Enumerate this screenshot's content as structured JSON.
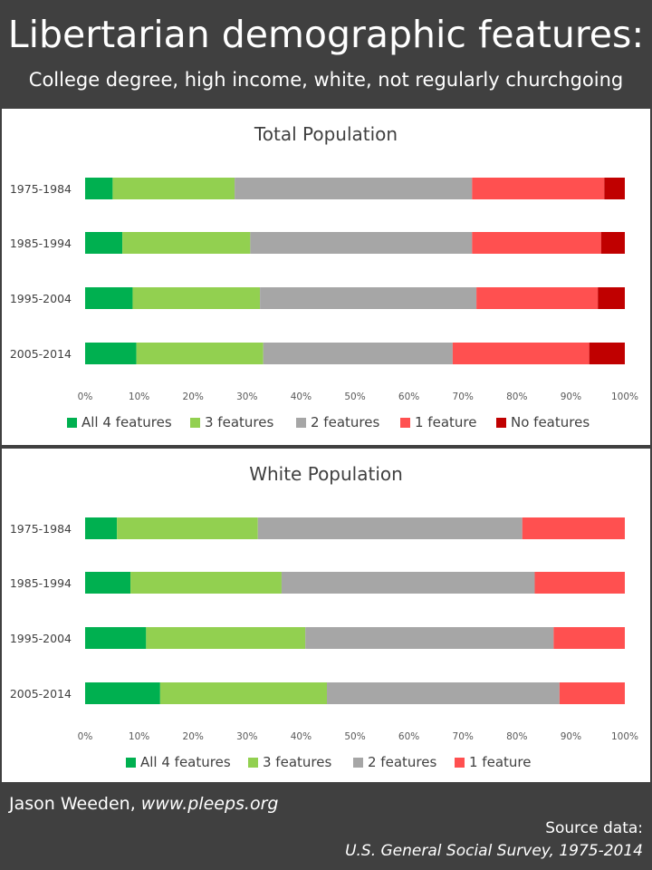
{
  "header": {
    "title": "Libertarian demographic features:",
    "subtitle": "College degree, high income, white, not regularly churchgoing"
  },
  "footer": {
    "author": "Jason Weeden,",
    "site": "www.pleeps.org",
    "source_label": "Source data:",
    "source_name": "U.S. General Social Survey, 1975-2014"
  },
  "chart_data": [
    {
      "type": "bar",
      "orientation": "horizontal",
      "stacking": "percent",
      "title": "Total Population",
      "xlabel": "",
      "ylabel": "",
      "xlim": [
        0,
        100
      ],
      "x_ticks": [
        "0%",
        "10%",
        "20%",
        "30%",
        "40%",
        "50%",
        "60%",
        "70%",
        "80%",
        "90%",
        "100%"
      ],
      "grid": false,
      "legend_position": "bottom",
      "categories": [
        "1975-1984",
        "1985-1994",
        "1995-2004",
        "2005-2014"
      ],
      "series": [
        {
          "name": "All 4 features",
          "color": "#00b050",
          "values": [
            5.1,
            6.9,
            8.8,
            9.5
          ]
        },
        {
          "name": "3 features",
          "color": "#92d050",
          "values": [
            22.6,
            23.7,
            23.6,
            23.5
          ]
        },
        {
          "name": "2 features",
          "color": "#a6a6a6",
          "values": [
            44.0,
            41.1,
            40.1,
            35.1
          ]
        },
        {
          "name": "1 feature",
          "color": "#ff5050",
          "values": [
            24.5,
            23.9,
            22.5,
            25.3
          ]
        },
        {
          "name": "No features",
          "color": "#c00000",
          "values": [
            3.8,
            4.4,
            5.0,
            6.6
          ]
        }
      ]
    },
    {
      "type": "bar",
      "orientation": "horizontal",
      "stacking": "percent",
      "title": "White Population",
      "xlabel": "",
      "ylabel": "",
      "xlim": [
        0,
        100
      ],
      "x_ticks": [
        "0%",
        "10%",
        "20%",
        "30%",
        "40%",
        "50%",
        "60%",
        "70%",
        "80%",
        "90%",
        "100%"
      ],
      "grid": false,
      "legend_position": "bottom",
      "categories": [
        "1975-1984",
        "1985-1994",
        "1995-2004",
        "2005-2014"
      ],
      "series": [
        {
          "name": "All 4 features",
          "color": "#00b050",
          "values": [
            5.9,
            8.4,
            11.3,
            13.9
          ]
        },
        {
          "name": "3 features",
          "color": "#92d050",
          "values": [
            26.1,
            28.0,
            29.5,
            30.9
          ]
        },
        {
          "name": "2 features",
          "color": "#a6a6a6",
          "values": [
            49.0,
            46.9,
            46.0,
            43.1
          ]
        },
        {
          "name": "1 feature",
          "color": "#ff5050",
          "values": [
            19.0,
            16.7,
            13.2,
            12.1
          ]
        }
      ]
    }
  ]
}
